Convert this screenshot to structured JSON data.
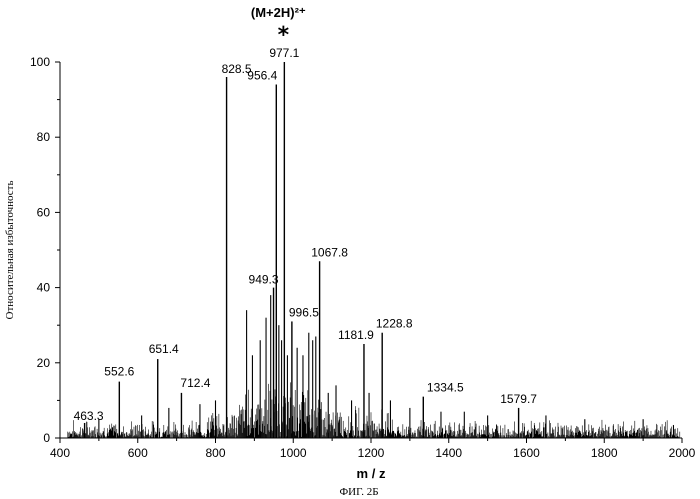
{
  "chart_data": {
    "type": "line",
    "title": "",
    "xlabel": "m / z",
    "ylabel": "Относительная избыточность",
    "caption": "ФИГ. 2Б",
    "xlim": [
      400,
      2000
    ],
    "ylim": [
      0,
      100
    ],
    "x_ticks": [
      "400",
      "600",
      "800",
      "1000",
      "1200",
      "1400",
      "1600",
      "1800",
      "2000"
    ],
    "y_ticks": [
      "0",
      "20",
      "40",
      "60",
      "80",
      "100"
    ],
    "annotation": {
      "text": "(M+2H)²⁺",
      "marker": "*",
      "at_x": 977.1
    },
    "labeled_peaks": [
      {
        "x": 463.3,
        "y": 4,
        "label": "463.3"
      },
      {
        "x": 552.6,
        "y": 15,
        "label": "552.6"
      },
      {
        "x": 651.4,
        "y": 21,
        "label": "651.4"
      },
      {
        "x": 712.4,
        "y": 12,
        "label": "712.4"
      },
      {
        "x": 828.5,
        "y": 96,
        "label": "828.5"
      },
      {
        "x": 949.3,
        "y": 40,
        "label": "949.3"
      },
      {
        "x": 956.4,
        "y": 94,
        "label": "956.4"
      },
      {
        "x": 977.1,
        "y": 100,
        "label": "977.1"
      },
      {
        "x": 996.5,
        "y": 31,
        "label": "996.5"
      },
      {
        "x": 1067.8,
        "y": 47,
        "label": "1067.8"
      },
      {
        "x": 1181.9,
        "y": 25,
        "label": "1181.9"
      },
      {
        "x": 1228.8,
        "y": 28,
        "label": "1228.8"
      },
      {
        "x": 1334.5,
        "y": 11,
        "label": "1334.5"
      },
      {
        "x": 1579.7,
        "y": 8,
        "label": "1579.7"
      }
    ],
    "other_peaks": [
      {
        "x": 880,
        "y": 34
      },
      {
        "x": 895,
        "y": 22
      },
      {
        "x": 915,
        "y": 26
      },
      {
        "x": 930,
        "y": 32
      },
      {
        "x": 942,
        "y": 38
      },
      {
        "x": 963,
        "y": 30
      },
      {
        "x": 970,
        "y": 26
      },
      {
        "x": 985,
        "y": 22
      },
      {
        "x": 1010,
        "y": 24
      },
      {
        "x": 1025,
        "y": 22
      },
      {
        "x": 1040,
        "y": 28
      },
      {
        "x": 1050,
        "y": 26
      },
      {
        "x": 1058,
        "y": 27
      },
      {
        "x": 1090,
        "y": 12
      },
      {
        "x": 1110,
        "y": 14
      },
      {
        "x": 1150,
        "y": 10
      },
      {
        "x": 1195,
        "y": 12
      },
      {
        "x": 1250,
        "y": 10
      },
      {
        "x": 1300,
        "y": 8
      },
      {
        "x": 1380,
        "y": 7
      },
      {
        "x": 1440,
        "y": 7
      },
      {
        "x": 1500,
        "y": 6
      },
      {
        "x": 1650,
        "y": 6
      },
      {
        "x": 1750,
        "y": 5
      },
      {
        "x": 1900,
        "y": 5
      },
      {
        "x": 500,
        "y": 5
      },
      {
        "x": 610,
        "y": 6
      },
      {
        "x": 680,
        "y": 8
      },
      {
        "x": 760,
        "y": 9
      },
      {
        "x": 800,
        "y": 10
      }
    ],
    "noise_level": 4,
    "grid": false
  }
}
